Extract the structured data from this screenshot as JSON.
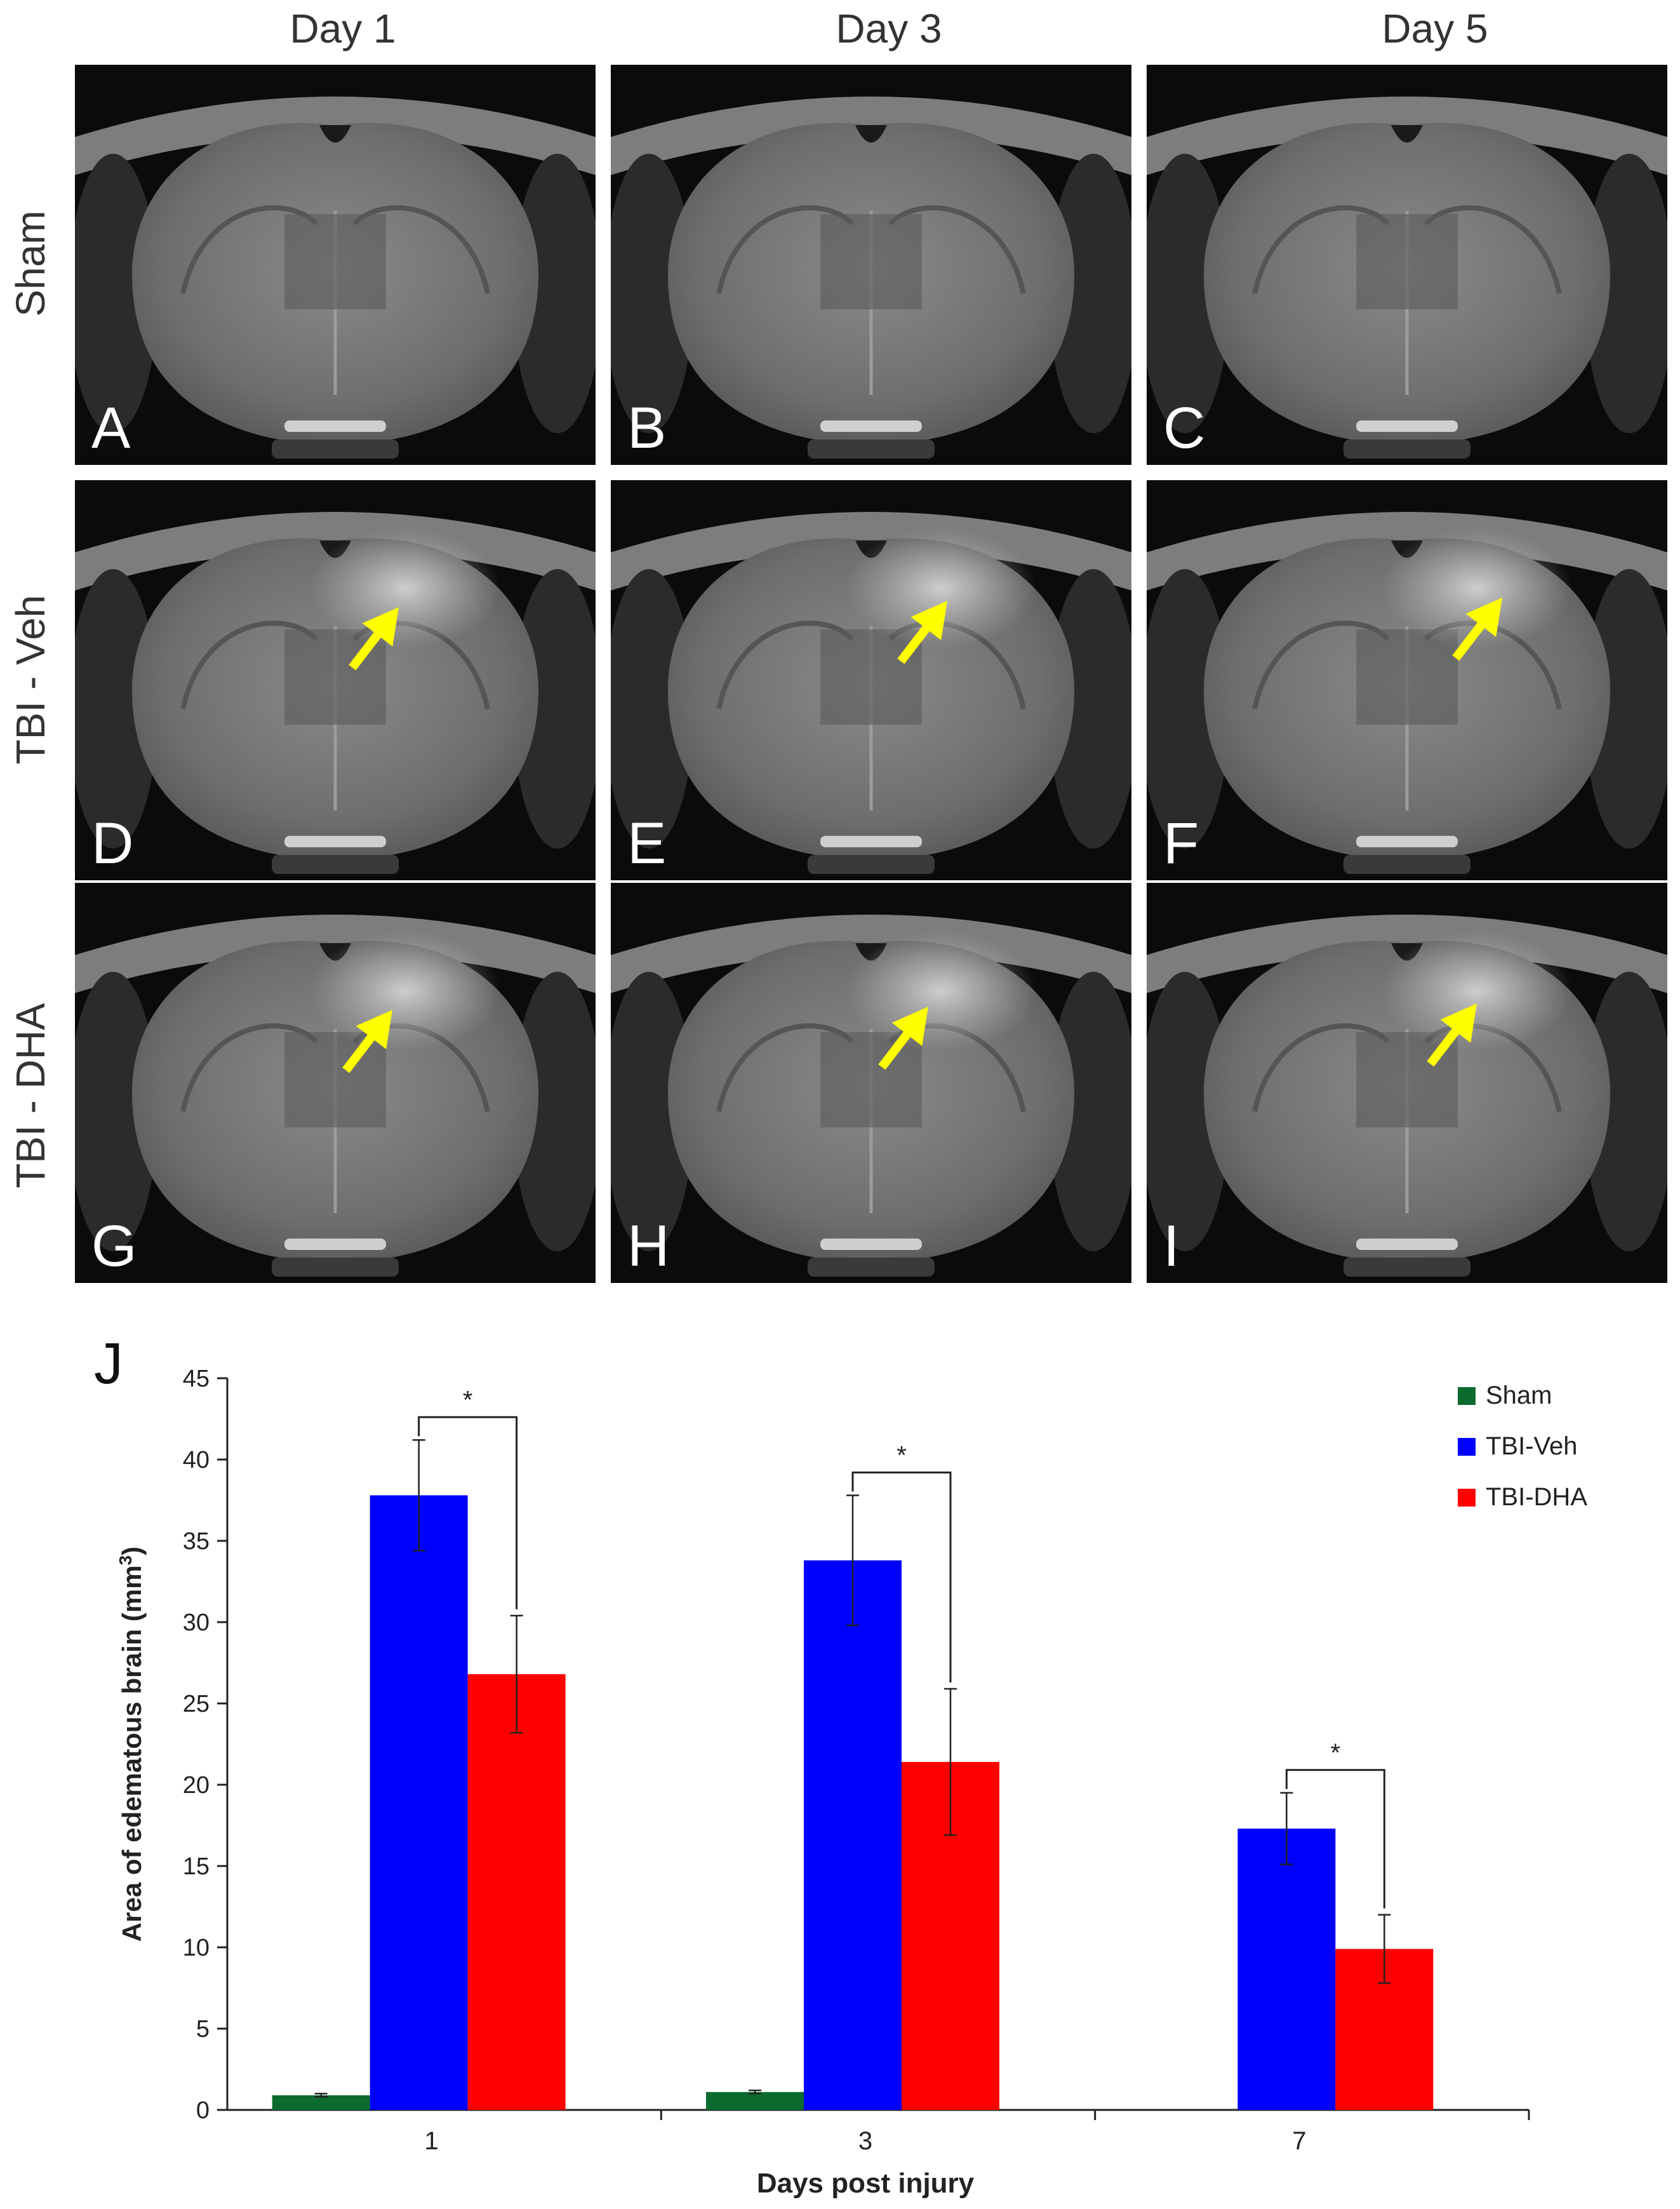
{
  "figure": {
    "columns": [
      "Day 1",
      "Day 3",
      "Day 5"
    ],
    "rows": [
      "Sham",
      "TBI - Veh",
      "TBI - DHA"
    ],
    "panels": [
      {
        "letter": "A",
        "arrow": false
      },
      {
        "letter": "B",
        "arrow": false
      },
      {
        "letter": "C",
        "arrow": false
      },
      {
        "letter": "D",
        "arrow": true
      },
      {
        "letter": "E",
        "arrow": true
      },
      {
        "letter": "F",
        "arrow": true
      },
      {
        "letter": "G",
        "arrow": true
      },
      {
        "letter": "H",
        "arrow": true
      },
      {
        "letter": "I",
        "arrow": true
      }
    ],
    "arrow_color": "#FFFF00"
  },
  "chart_data": {
    "type": "bar",
    "panel_label": "J",
    "title": "",
    "xlabel": "Days  post injury",
    "ylabel": "Area of  edematous brain (mm",
    "ylabel_superscript": "3",
    "ylabel_suffix": ")",
    "categories": [
      "1",
      "3",
      "7"
    ],
    "ylim": [
      0,
      45
    ],
    "yticks": [
      0,
      5,
      10,
      15,
      20,
      25,
      30,
      35,
      40,
      45
    ],
    "legend_position": "top-right",
    "series": [
      {
        "name": "Sham",
        "color": "#0B6B2E",
        "values": [
          0.9,
          1.1,
          0
        ],
        "errors": [
          0.1,
          0.1,
          0
        ]
      },
      {
        "name": "TBI-Veh",
        "color": "#0000FF",
        "values": [
          37.8,
          33.8,
          17.3
        ],
        "errors": [
          3.4,
          4.0,
          2.2
        ]
      },
      {
        "name": "TBI-DHA",
        "color": "#FF0000",
        "values": [
          26.8,
          21.4,
          9.9
        ],
        "errors": [
          3.6,
          4.5,
          2.1
        ]
      }
    ],
    "significance": [
      {
        "category": "1",
        "label": "*"
      },
      {
        "category": "3",
        "label": "*"
      },
      {
        "category": "7",
        "label": "*"
      }
    ]
  }
}
